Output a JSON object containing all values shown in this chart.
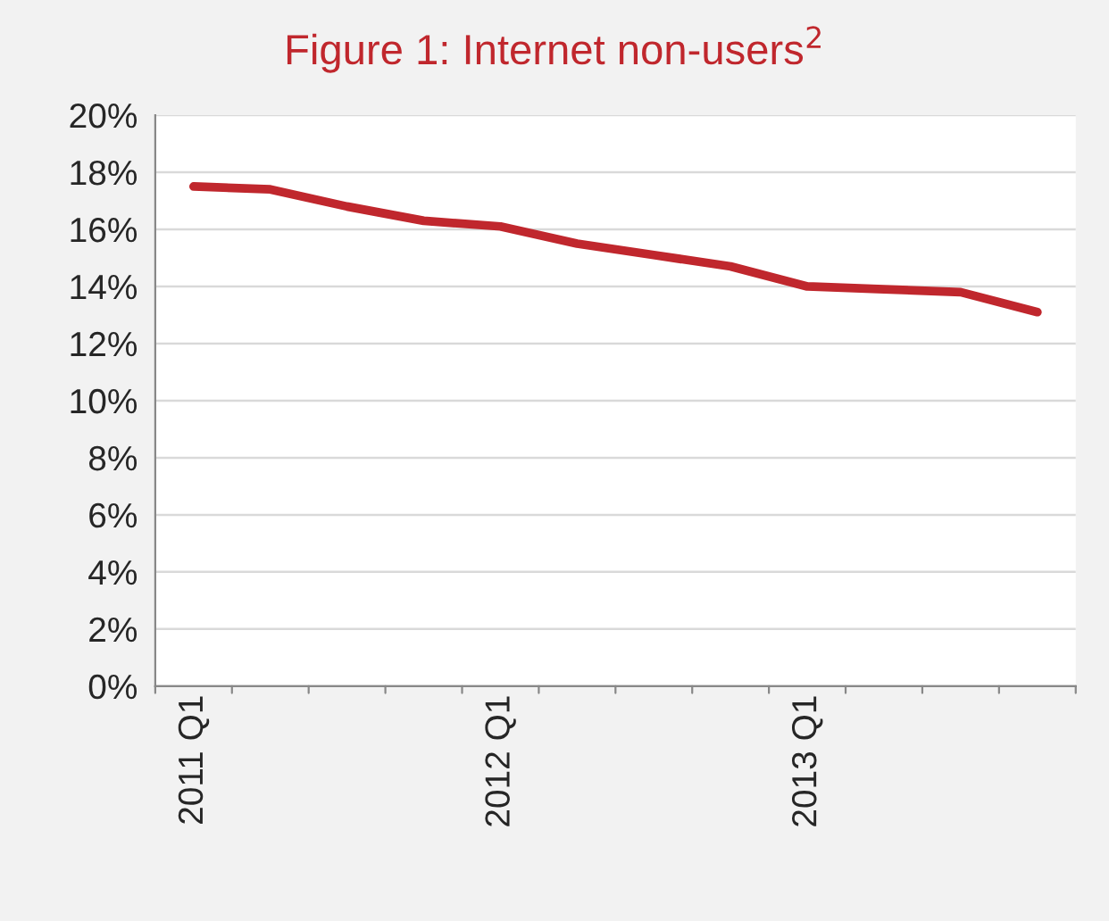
{
  "chart_data": {
    "type": "line",
    "title": "Figure 1: Internet non-users$^{2}$",
    "categories": [
      "2011 Q1",
      null,
      null,
      null,
      "2012 Q1",
      null,
      null,
      null,
      "2013 Q1",
      null,
      null,
      null
    ],
    "series": [
      {
        "color": "#c0272d",
        "values": [
          17.5,
          17.4,
          16.8,
          16.3,
          16.1,
          15.5,
          15.1,
          14.7,
          14.0,
          13.9,
          13.8,
          13.1
        ]
      }
    ],
    "ylim": [
      0,
      20
    ],
    "yticks": [
      {
        "value": 0,
        "label": "0%"
      },
      {
        "value": 2,
        "label": "2%"
      },
      {
        "value": 4,
        "label": "4%"
      },
      {
        "value": 6,
        "label": "6%"
      },
      {
        "value": 8,
        "label": "8%"
      },
      {
        "value": 10,
        "label": "10%"
      },
      {
        "value": 12,
        "label": "12%"
      },
      {
        "value": 14,
        "label": "14%"
      },
      {
        "value": 16,
        "label": "16%"
      },
      {
        "value": 18,
        "label": "18%"
      },
      {
        "value": 20,
        "label": "20%"
      }
    ],
    "grid": "y",
    "marker": "none",
    "line_style": "solid"
  }
}
